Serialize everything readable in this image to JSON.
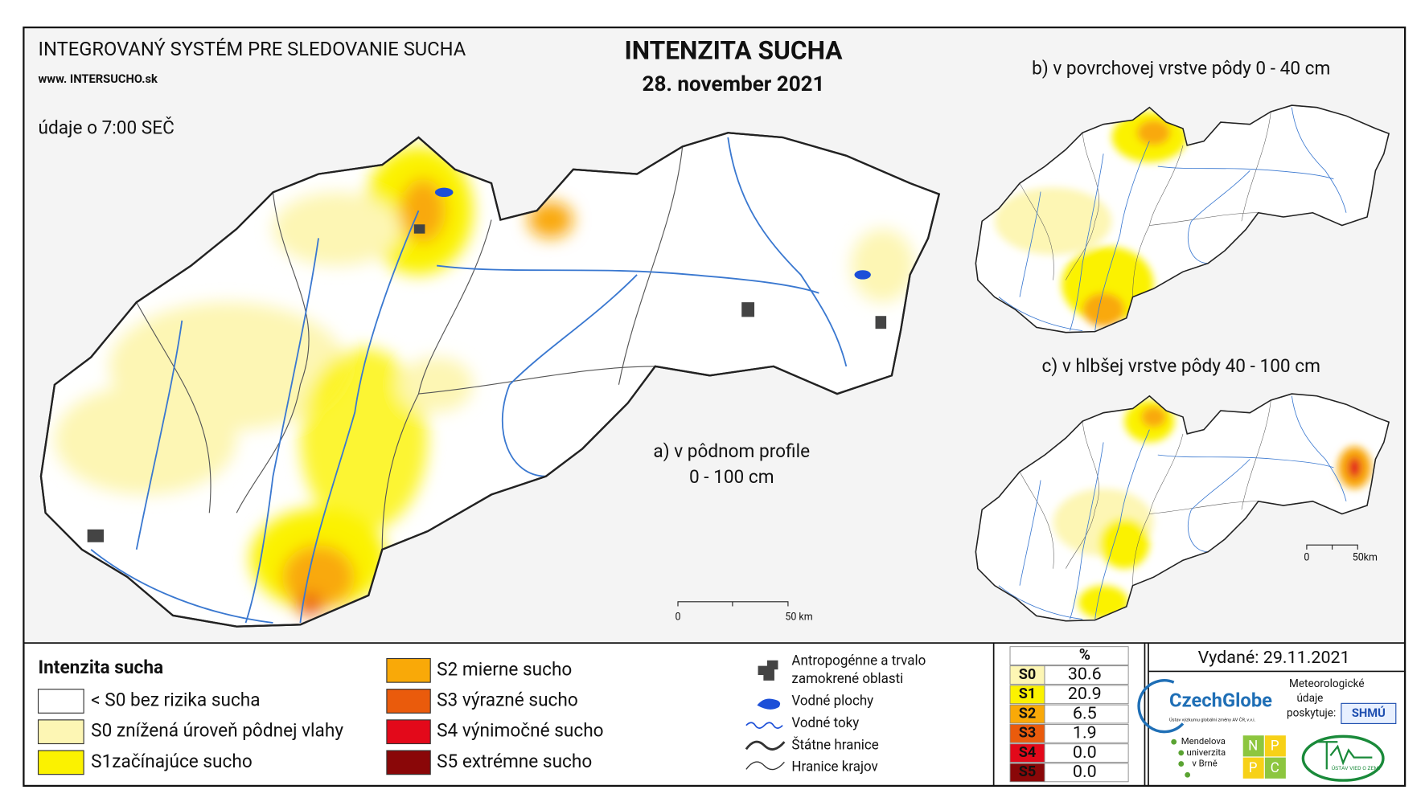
{
  "header": {
    "system": "INTEGROVANÝ SYSTÉM PRE SLEDOVANIE SUCHA",
    "website": "www. INTERSUCHO.sk",
    "time_note": "údaje o 7:00 SEČ",
    "title": "INTENZITA SUCHA",
    "date": "28. november 2021"
  },
  "maps": {
    "a": {
      "label": [
        "a) v pôdnom profile",
        "0 - 100 cm"
      ],
      "scale": [
        "0",
        "50 km"
      ]
    },
    "b": {
      "label": "b) v povrchovej vrstve pôdy 0 - 40 cm"
    },
    "c": {
      "label": "c) v hlbšej vrstve pôdy 40 - 100 cm",
      "scale": [
        "0",
        "50km"
      ]
    }
  },
  "legend": {
    "title": "Intenzita sucha",
    "items": [
      {
        "label": "< S0 bez rizika sucha",
        "color": "#ffffff"
      },
      {
        "label": "S0 znížená úroveň pôdnej vlahy",
        "color": "#fdf6b4"
      },
      {
        "label": "S1začínajúce sucho",
        "color": "#fbf200"
      },
      {
        "label": "S2 mierne sucho",
        "color": "#f9a908"
      },
      {
        "label": "S3 výrazné sucho",
        "color": "#ea5b0c"
      },
      {
        "label": "S4 výnimočné sucho",
        "color": "#e3091a"
      },
      {
        "label": "S5 extrémne sucho",
        "color": "#8a0708"
      }
    ]
  },
  "symbols": [
    [
      "Antropogénne a trvalo",
      "zamokrené oblasti"
    ],
    [
      "Vodné plochy"
    ],
    [
      "Vodné toky"
    ],
    [
      "Štátne hranice"
    ],
    [
      "Hranice krajov"
    ]
  ],
  "stats": {
    "header": "%",
    "rows": [
      {
        "class": "S0",
        "value": "30.6",
        "color": "#fdf6b4"
      },
      {
        "class": "S1",
        "value": "20.9",
        "color": "#fbf200"
      },
      {
        "class": "S2",
        "value": "6.5",
        "color": "#f9a908"
      },
      {
        "class": "S3",
        "value": "1.9",
        "color": "#ea5b0c"
      },
      {
        "class": "S4",
        "value": "0.0",
        "color": "#e3091a"
      },
      {
        "class": "S5",
        "value": "0.0",
        "color": "#8a0708"
      }
    ]
  },
  "footer": {
    "issued": "Vydané: 29.11.2021",
    "czechglobe": "CzechGlobe",
    "czechglobe_sub": "Ústav výzkumu globální změny AV ČR, v.v.i.",
    "meteo": [
      "Meteorologické",
      "údaje",
      "poskytuje:"
    ],
    "shmu": "SHMÚ",
    "mendel": [
      "Mendelova",
      "univerzita",
      "v Brně"
    ],
    "npc": [
      "N",
      "P",
      "P",
      "C"
    ],
    "uvz": "ÚSTAV VIED O ZEMI"
  }
}
